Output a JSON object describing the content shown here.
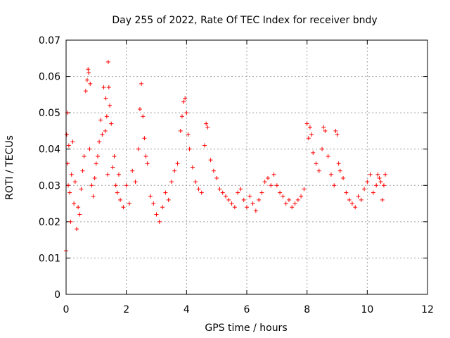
{
  "chart_data": {
    "type": "scatter",
    "title": "Day 255 of 2022, Rate Of TEC Index for receiver bndy",
    "xlabel": "GPS time / hours",
    "ylabel": "ROTI / TECUs",
    "xlim": [
      0,
      12
    ],
    "ylim": [
      0,
      0.07
    ],
    "xticks": [
      "0",
      "2",
      "4",
      "6",
      "8",
      "10",
      "12"
    ],
    "yticks": [
      "0",
      "0.01",
      "0.02",
      "0.03",
      "0.04",
      "0.05",
      "0.06",
      "0.07"
    ],
    "grid": true,
    "marker": "plus",
    "color": "#ff0000",
    "series": [
      {
        "x": [
          0.0,
          0.02,
          0.04,
          0.05,
          0.07,
          0.09,
          0.12,
          0.15,
          0.18,
          0.22,
          0.26,
          0.3,
          0.35,
          0.4,
          0.45,
          0.5,
          0.55,
          0.6,
          0.65,
          0.7,
          0.73,
          0.75,
          0.78,
          0.8,
          0.85,
          0.9,
          0.95,
          1.0,
          1.05,
          1.1,
          1.15,
          1.2,
          1.25,
          1.3,
          1.32,
          1.35,
          1.38,
          1.4,
          1.42,
          1.45,
          1.5,
          1.55,
          1.6,
          1.65,
          1.7,
          1.75,
          1.8,
          1.9,
          2.0,
          2.1,
          2.2,
          2.3,
          2.4,
          2.45,
          2.5,
          2.55,
          2.6,
          2.65,
          2.7,
          2.8,
          2.9,
          3.0,
          3.1,
          3.2,
          3.3,
          3.4,
          3.5,
          3.6,
          3.7,
          3.8,
          3.85,
          3.9,
          3.95,
          4.0,
          4.05,
          4.1,
          4.2,
          4.3,
          4.4,
          4.5,
          4.6,
          4.65,
          4.7,
          4.8,
          4.9,
          5.0,
          5.1,
          5.2,
          5.3,
          5.4,
          5.5,
          5.6,
          5.7,
          5.8,
          5.9,
          6.0,
          6.1,
          6.2,
          6.3,
          6.4,
          6.5,
          6.6,
          6.7,
          6.8,
          6.9,
          7.0,
          7.1,
          7.2,
          7.3,
          7.4,
          7.5,
          7.6,
          7.7,
          7.8,
          7.9,
          8.0,
          8.05,
          8.1,
          8.15,
          8.2,
          8.3,
          8.4,
          8.5,
          8.55,
          8.6,
          8.7,
          8.8,
          8.9,
          8.95,
          9.0,
          9.05,
          9.1,
          9.2,
          9.3,
          9.4,
          9.5,
          9.6,
          9.7,
          9.8,
          9.9,
          10.0,
          10.1,
          10.2,
          10.3,
          10.35,
          10.4,
          10.45,
          10.5,
          10.55,
          10.6
        ],
        "y": [
          0.012,
          0.044,
          0.05,
          0.036,
          0.03,
          0.041,
          0.028,
          0.02,
          0.033,
          0.042,
          0.025,
          0.031,
          0.018,
          0.024,
          0.022,
          0.029,
          0.034,
          0.038,
          0.056,
          0.059,
          0.062,
          0.061,
          0.04,
          0.058,
          0.03,
          0.027,
          0.032,
          0.036,
          0.038,
          0.042,
          0.048,
          0.044,
          0.057,
          0.045,
          0.054,
          0.049,
          0.033,
          0.064,
          0.057,
          0.052,
          0.047,
          0.035,
          0.038,
          0.03,
          0.028,
          0.033,
          0.026,
          0.024,
          0.03,
          0.025,
          0.034,
          0.031,
          0.04,
          0.051,
          0.058,
          0.049,
          0.043,
          0.038,
          0.036,
          0.027,
          0.025,
          0.022,
          0.02,
          0.024,
          0.028,
          0.026,
          0.031,
          0.034,
          0.036,
          0.045,
          0.049,
          0.053,
          0.054,
          0.05,
          0.044,
          0.04,
          0.035,
          0.031,
          0.029,
          0.028,
          0.041,
          0.047,
          0.046,
          0.037,
          0.034,
          0.032,
          0.029,
          0.028,
          0.027,
          0.026,
          0.025,
          0.024,
          0.028,
          0.029,
          0.026,
          0.024,
          0.027,
          0.025,
          0.023,
          0.026,
          0.028,
          0.031,
          0.032,
          0.03,
          0.033,
          0.03,
          0.028,
          0.027,
          0.025,
          0.026,
          0.024,
          0.025,
          0.026,
          0.027,
          0.029,
          0.047,
          0.043,
          0.046,
          0.044,
          0.039,
          0.036,
          0.034,
          0.04,
          0.046,
          0.045,
          0.038,
          0.033,
          0.03,
          0.045,
          0.044,
          0.036,
          0.034,
          0.032,
          0.028,
          0.026,
          0.025,
          0.024,
          0.027,
          0.026,
          0.029,
          0.031,
          0.033,
          0.028,
          0.03,
          0.033,
          0.032,
          0.031,
          0.026,
          0.03,
          0.033
        ]
      }
    ]
  }
}
